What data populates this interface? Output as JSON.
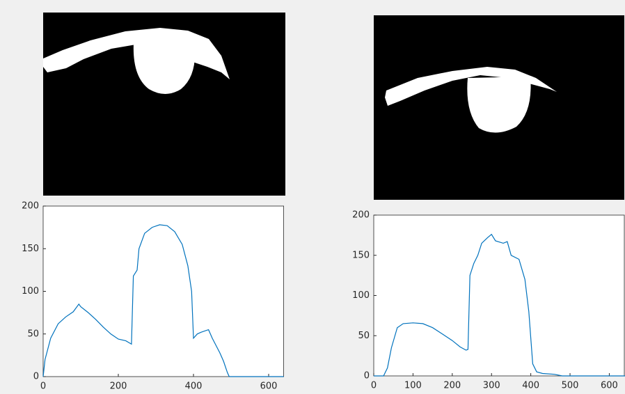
{
  "chart_data": [
    {
      "type": "line",
      "xlim": [
        0,
        640
      ],
      "ylim": [
        0,
        200
      ],
      "xticks": [
        0,
        200,
        400,
        600
      ],
      "yticks": [
        0,
        50,
        100,
        150,
        200
      ],
      "x": [
        0,
        5,
        20,
        40,
        60,
        80,
        95,
        100,
        120,
        140,
        160,
        180,
        200,
        220,
        235,
        240,
        250,
        255,
        270,
        290,
        310,
        330,
        350,
        370,
        385,
        395,
        400,
        410,
        420,
        440,
        450,
        470,
        480,
        490,
        495,
        520,
        640
      ],
      "series": [
        {
          "color": "#0072bd",
          "values": [
            0,
            20,
            45,
            62,
            70,
            76,
            85,
            82,
            75,
            67,
            58,
            50,
            44,
            42,
            38,
            118,
            125,
            150,
            168,
            175,
            178,
            177,
            170,
            155,
            130,
            100,
            45,
            50,
            52,
            55,
            45,
            28,
            18,
            5,
            0,
            0,
            0
          ]
        }
      ]
    },
    {
      "type": "line",
      "xlim": [
        0,
        640
      ],
      "ylim": [
        0,
        200
      ],
      "xticks": [
        0,
        100,
        200,
        300,
        400,
        500,
        600
      ],
      "yticks": [
        0,
        50,
        100,
        150,
        200
      ],
      "x": [
        0,
        25,
        35,
        45,
        60,
        75,
        100,
        125,
        150,
        175,
        200,
        220,
        235,
        240,
        245,
        255,
        265,
        275,
        290,
        300,
        310,
        330,
        340,
        350,
        370,
        385,
        395,
        405,
        415,
        430,
        460,
        480,
        640
      ],
      "series": [
        {
          "color": "#0072bd",
          "values": [
            0,
            0,
            10,
            35,
            60,
            65,
            66,
            65,
            60,
            52,
            44,
            36,
            32,
            33,
            125,
            140,
            150,
            165,
            172,
            176,
            168,
            165,
            167,
            150,
            145,
            120,
            80,
            15,
            5,
            3,
            2,
            0,
            0
          ]
        }
      ]
    }
  ]
}
